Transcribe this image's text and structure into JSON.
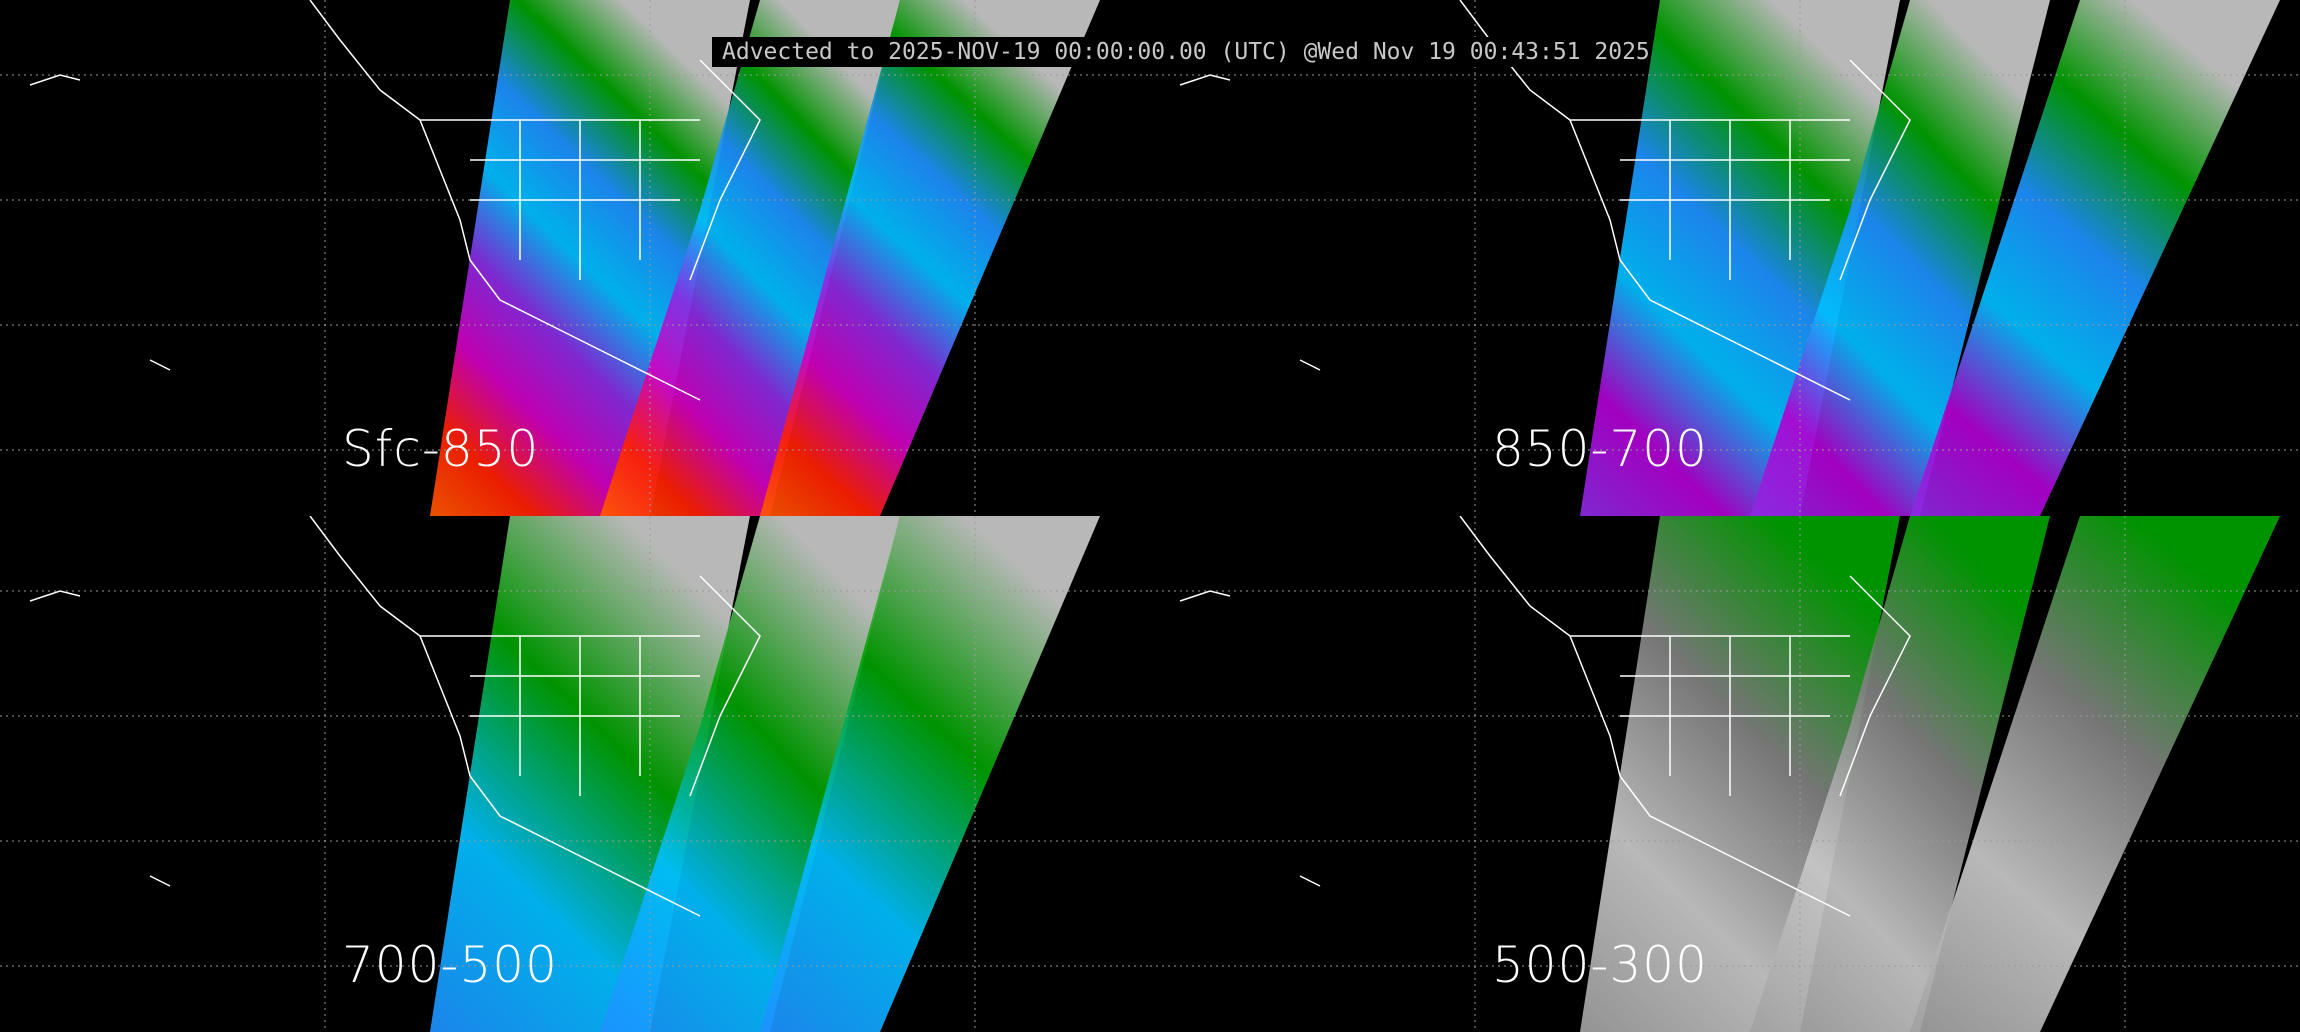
{
  "header": {
    "text": "Advected to 2025-NOV-19 00:00:00.00 (UTC) @Wed Nov 19 00:43:51 2025"
  },
  "panels": [
    {
      "label": "Sfc-850",
      "palette": [
        "#ff5a00",
        "#ff2000",
        "#d000c0",
        "#8a2be2",
        "#00bfff",
        "#1e90ff",
        "#00a000",
        "#c8c8c8"
      ]
    },
    {
      "label": "850-700",
      "palette": [
        "#8a2be2",
        "#b000d0",
        "#00bfff",
        "#1e90ff",
        "#00a000",
        "#c8c8c8"
      ]
    },
    {
      "label": "700-500",
      "palette": [
        "#1e90ff",
        "#00bfff",
        "#00a000",
        "#c8c8c8"
      ]
    },
    {
      "label": "500-300",
      "palette": [
        "#a0a0a0",
        "#c8c8c8",
        "#808080",
        "#00a000"
      ]
    }
  ],
  "colors": {
    "background": "#000000",
    "coastline": "#ffffff",
    "grid": "#9a9a9a"
  }
}
